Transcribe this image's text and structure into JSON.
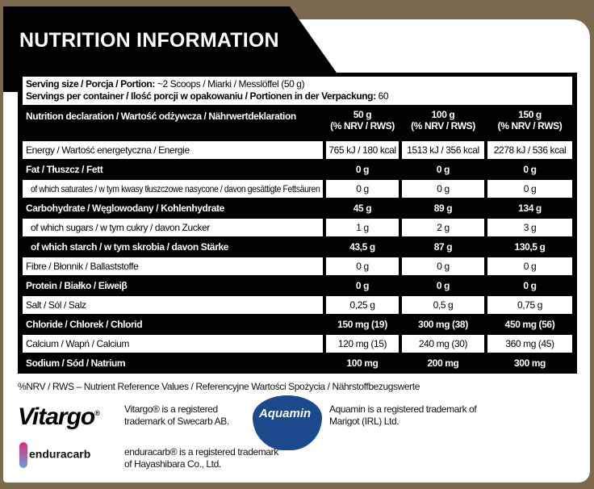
{
  "title": "NUTRITION INFORMATION",
  "serving": {
    "size_label": "Serving size / Porcja / Portion:",
    "size_value": " ~2 Scoops / Miarki / Messlöffel (50 g)",
    "per_container_label": "Servings per container / Ilość porcji w opakowaniu / Portionen in der Verpackung:",
    "per_container_value": " 60"
  },
  "header": {
    "label": "Nutrition declaration / Wartość odżywcza / Nährwertdeklaration",
    "cols": [
      {
        "amount": "50 g",
        "sub": "(% NRV / RWS)"
      },
      {
        "amount": "100 g",
        "sub": "(% NRV / RWS)"
      },
      {
        "amount": "150 g",
        "sub": "(% NRV / RWS)"
      }
    ]
  },
  "rows": [
    {
      "label": "Energy / Wartość energetyczna / Energie",
      "values": [
        "765 kJ / 180 kcal",
        "1513 kJ / 356 kcal",
        "2278 kJ / 536 kcal"
      ],
      "style": "white"
    },
    {
      "label": "Fat / Tłuszcz / Fett",
      "values": [
        "0 g",
        "0 g",
        "0 g"
      ],
      "style": "black"
    },
    {
      "label": "of which saturates / w tym kwasy tłuszczowe nasycone / davon gesättigte Fettsäuren",
      "values": [
        "0 g",
        "0 g",
        "0 g"
      ],
      "style": "white"
    },
    {
      "label": "Carbohydrate / Węglowodany / Kohlenhydrate",
      "values": [
        "45 g",
        "89 g",
        "134 g"
      ],
      "style": "black"
    },
    {
      "label": "of which sugars / w tym cukry / davon Zucker",
      "values": [
        "1 g",
        "2 g",
        "3 g"
      ],
      "style": "white"
    },
    {
      "label": "of which starch / w tym skrobia / davon Stärke",
      "values": [
        "43,5 g",
        "87 g",
        "130,5 g"
      ],
      "style": "black"
    },
    {
      "label": "Fibre / Błonnik / Ballaststoffe",
      "values": [
        "0 g",
        "0 g",
        "0 g"
      ],
      "style": "white"
    },
    {
      "label": "Protein / Białko / Eiweiβ",
      "values": [
        "0 g",
        "0 g",
        "0 g"
      ],
      "style": "black"
    },
    {
      "label": "Salt / Sól / Salz",
      "values": [
        "0,25 g",
        "0,5 g",
        "0,75 g"
      ],
      "style": "white"
    },
    {
      "label": "Chloride / Chlorek / Chlorid",
      "values": [
        "150 mg (19)",
        "300 mg (38)",
        "450 mg (56)"
      ],
      "style": "black"
    },
    {
      "label": "Calcium / Wapń / Calcium",
      "values": [
        "120 mg (15)",
        "240 mg (30)",
        "360 mg (45)"
      ],
      "style": "white"
    },
    {
      "label": "Sodium / Sód / Natrium",
      "values": [
        "100 mg",
        "200 mg",
        "300 mg"
      ],
      "style": "black"
    }
  ],
  "footnote": "%NRV / RWS – Nutrient Reference Values / Referencyjne Wartości Spożycia / Nährstoffbezugswerte",
  "trademarks": {
    "vitargo_logo": "Vitargo",
    "vitargo_text1": "Vitargo® is a registered",
    "vitargo_text2": "trademark of Swecarb AB.",
    "aquamin_logo": "Aquamin",
    "aquamin_text1": "Aquamin is a registered trademark of",
    "aquamin_text2": "Marigot (IRL) Ltd.",
    "enduracarb_logo": "enduracarb",
    "enduracarb_text1": "enduracarb®  is a registered trademark",
    "enduracarb_text2": "of Hayashibara Co., Ltd."
  }
}
